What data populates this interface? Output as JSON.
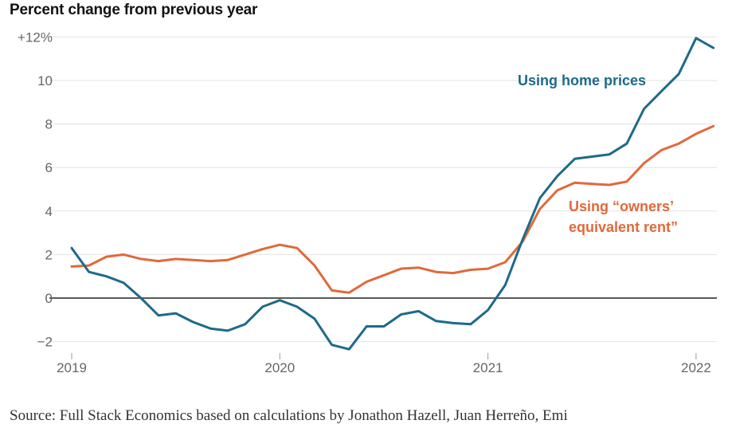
{
  "title": "Percent change from previous year",
  "source": "Source: Full Stack Economics based on calculations by Jonathon Hazell, Juan Herreño, Emi",
  "chart_data": {
    "type": "line",
    "title": "Percent change from previous year",
    "xlabel": "",
    "ylabel": "",
    "ylim": [
      -2.5,
      12.5
    ],
    "y_ticks": [
      {
        "value": 12,
        "label": "+12%"
      },
      {
        "value": 10,
        "label": "10"
      },
      {
        "value": 8,
        "label": "8"
      },
      {
        "value": 6,
        "label": "6"
      },
      {
        "value": 4,
        "label": "4"
      },
      {
        "value": 2,
        "label": "2"
      },
      {
        "value": 0,
        "label": "0"
      },
      {
        "value": -2,
        "label": "−2"
      }
    ],
    "x_ticks": [
      {
        "value": 2019,
        "label": "2019"
      },
      {
        "value": 2020,
        "label": "2020"
      },
      {
        "value": 2021,
        "label": "2021"
      },
      {
        "value": 2022,
        "label": "2022"
      }
    ],
    "grid": true,
    "legend": "direct labels on lines",
    "series": [
      {
        "name": "Using home prices",
        "label_lines": [
          "Using home prices"
        ],
        "color": "#1d6a8a",
        "x": [
          2019.0,
          2019.083,
          2019.167,
          2019.25,
          2019.333,
          2019.417,
          2019.5,
          2019.583,
          2019.667,
          2019.75,
          2019.833,
          2019.917,
          2020.0,
          2020.083,
          2020.167,
          2020.25,
          2020.333,
          2020.417,
          2020.5,
          2020.583,
          2020.667,
          2020.75,
          2020.833,
          2020.917,
          2021.0,
          2021.083,
          2021.167,
          2021.25,
          2021.333,
          2021.417,
          2021.5,
          2021.583,
          2021.667,
          2021.75,
          2021.833,
          2021.917,
          2022.0,
          2022.083
        ],
        "values": [
          2.3,
          1.2,
          1.0,
          0.7,
          0.0,
          -0.8,
          -0.7,
          -1.1,
          -1.4,
          -1.5,
          -1.2,
          -0.4,
          -0.1,
          -0.4,
          -0.95,
          -2.15,
          -2.35,
          -1.3,
          -1.3,
          -0.75,
          -0.6,
          -1.05,
          -1.15,
          -1.2,
          -0.55,
          0.6,
          2.7,
          4.6,
          5.6,
          6.4,
          6.5,
          6.6,
          7.1,
          8.7,
          9.5,
          10.3,
          11.95,
          11.5
        ]
      },
      {
        "name": "Using “owners’ equivalent rent”",
        "label_lines": [
          "Using “owners’",
          "equivalent rent”"
        ],
        "color": "#e0693a",
        "x": [
          2019.0,
          2019.083,
          2019.167,
          2019.25,
          2019.333,
          2019.417,
          2019.5,
          2019.583,
          2019.667,
          2019.75,
          2019.833,
          2019.917,
          2020.0,
          2020.083,
          2020.167,
          2020.25,
          2020.333,
          2020.417,
          2020.5,
          2020.583,
          2020.667,
          2020.75,
          2020.833,
          2020.917,
          2021.0,
          2021.083,
          2021.167,
          2021.25,
          2021.333,
          2021.417,
          2021.5,
          2021.583,
          2021.667,
          2021.75,
          2021.833,
          2021.917,
          2022.0,
          2022.083
        ],
        "values": [
          1.45,
          1.5,
          1.9,
          2.0,
          1.8,
          1.7,
          1.8,
          1.75,
          1.7,
          1.75,
          2.0,
          2.25,
          2.45,
          2.3,
          1.5,
          0.35,
          0.25,
          0.75,
          1.05,
          1.35,
          1.4,
          1.2,
          1.15,
          1.3,
          1.35,
          1.65,
          2.6,
          4.1,
          4.95,
          5.3,
          5.25,
          5.2,
          5.35,
          6.2,
          6.8,
          7.1,
          7.55,
          7.9
        ]
      }
    ]
  }
}
